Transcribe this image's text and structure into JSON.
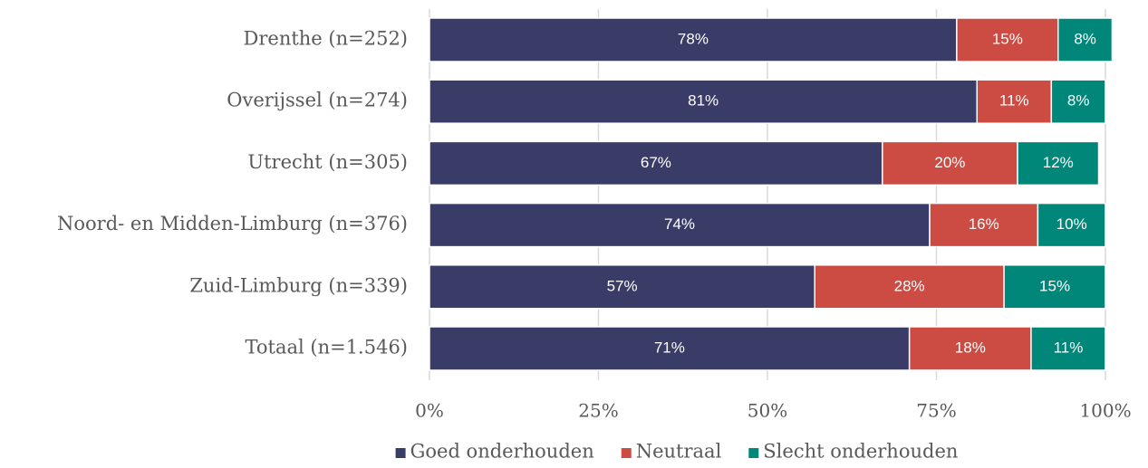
{
  "chart_data": {
    "type": "stacked-barh",
    "categories": [
      "Drenthe (n=252)",
      "Overijssel (n=274)",
      "Utrecht (n=305)",
      "Noord- en Midden-Limburg (n=376)",
      "Zuid-Limburg (n=339)",
      "Totaal (n=1.546)"
    ],
    "series": [
      {
        "name": "Goed onderhouden",
        "color": "#3a3c68",
        "values": [
          78,
          81,
          67,
          74,
          57,
          71
        ],
        "value_labels": [
          "78%",
          "81%",
          "67%",
          "74%",
          "57%",
          "71%"
        ]
      },
      {
        "name": "Neutraal",
        "color": "#cc4b43",
        "values": [
          15,
          11,
          20,
          16,
          28,
          18
        ],
        "value_labels": [
          "15%",
          "11%",
          "20%",
          "16%",
          "28%",
          "18%"
        ]
      },
      {
        "name": "Slecht onderhouden",
        "color": "#00877a",
        "values": [
          8,
          8,
          12,
          10,
          15,
          11
        ],
        "value_labels": [
          "8%",
          "8%",
          "12%",
          "10%",
          "15%",
          "11%"
        ]
      }
    ],
    "xlim": [
      0,
      100
    ],
    "xticks": [
      {
        "value": 0,
        "label": "0%"
      },
      {
        "value": 25,
        "label": "25%"
      },
      {
        "value": 50,
        "label": "50%"
      },
      {
        "value": 75,
        "label": "75%"
      },
      {
        "value": 100,
        "label": "100%"
      }
    ],
    "grid": true,
    "legend": "bottom"
  }
}
